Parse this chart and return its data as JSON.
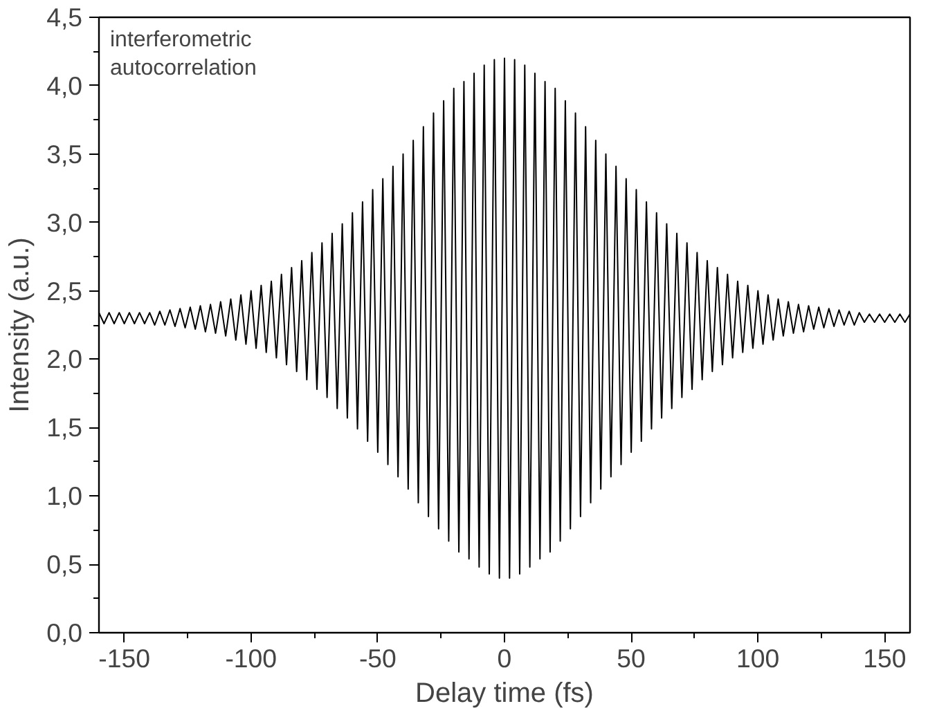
{
  "chart_data": {
    "type": "line",
    "xlabel": "Delay time (fs)",
    "ylabel": "Intensity (a.u.)",
    "annotations": [
      "interferometric\nautocorrelation"
    ],
    "xlim": [
      -160,
      160
    ],
    "ylim": [
      0,
      4.5
    ],
    "xticks": [
      -150,
      {
        "value": -125,
        "label": null
      },
      -100,
      {
        "value": -75,
        "label": null
      },
      -50,
      {
        "value": -25,
        "label": null
      },
      0,
      {
        "value": 25,
        "label": null
      },
      50,
      {
        "value": 75,
        "label": null
      },
      100,
      {
        "value": 125,
        "label": null
      },
      150
    ],
    "yticks": [
      {
        "value": 0,
        "label": "0,0"
      },
      {
        "value": 0.25,
        "label": null
      },
      {
        "value": 0.5,
        "label": "0,5"
      },
      {
        "value": 0.75,
        "label": null
      },
      {
        "value": 1.0,
        "label": "1,0"
      },
      {
        "value": 1.25,
        "label": null
      },
      {
        "value": 1.5,
        "label": "1,5"
      },
      {
        "value": 1.75,
        "label": null
      },
      {
        "value": 2.0,
        "label": "2,0"
      },
      {
        "value": 2.25,
        "label": null
      },
      {
        "value": 2.5,
        "label": "2,5"
      },
      {
        "value": 2.75,
        "label": null
      },
      {
        "value": 3.0,
        "label": "3,0"
      },
      {
        "value": 3.25,
        "label": null
      },
      {
        "value": 3.5,
        "label": "3,5"
      },
      {
        "value": 3.75,
        "label": null
      },
      {
        "value": 4.0,
        "label": "4,0"
      },
      {
        "value": 4.25,
        "label": null
      },
      {
        "value": 4.5,
        "label": "4,5"
      }
    ],
    "grid": false,
    "marker": "none",
    "line_style": "solid",
    "series": [
      {
        "color": "#000000",
        "x": [
          -160,
          -158,
          -156,
          -154,
          -152,
          -150,
          -148,
          -146,
          -144,
          -142,
          -140,
          -138,
          -136,
          -134,
          -132,
          -130,
          -128,
          -126,
          -124,
          -122,
          -120,
          -118,
          -116,
          -114,
          -112,
          -110,
          -108,
          -106,
          -104,
          -102,
          -100,
          -98,
          -96,
          -94,
          -92,
          -90,
          -88,
          -86,
          -84,
          -82,
          -80,
          -78,
          -76,
          -74,
          -72,
          -70,
          -68,
          -66,
          -64,
          -62,
          -60,
          -58,
          -56,
          -54,
          -52,
          -50,
          -48,
          -46,
          -44,
          -42,
          -40,
          -38,
          -36,
          -34,
          -32,
          -30,
          -28,
          -26,
          -24,
          -22,
          -20,
          -18,
          -16,
          -14,
          -12,
          -10,
          -8,
          -6,
          -4,
          -2,
          0,
          2,
          4,
          6,
          8,
          10,
          12,
          14,
          16,
          18,
          20,
          22,
          24,
          26,
          28,
          30,
          32,
          34,
          36,
          38,
          40,
          42,
          44,
          46,
          48,
          50,
          52,
          54,
          56,
          58,
          60,
          62,
          64,
          66,
          68,
          70,
          72,
          74,
          76,
          78,
          80,
          82,
          84,
          86,
          88,
          90,
          92,
          94,
          96,
          98,
          100,
          102,
          104,
          106,
          108,
          110,
          112,
          114,
          116,
          118,
          120,
          122,
          124,
          126,
          128,
          130,
          132,
          134,
          136,
          138,
          140,
          142,
          144,
          146,
          148,
          150,
          152,
          154,
          156,
          158,
          160
        ],
        "values": [
          2.34,
          2.26,
          2.34,
          2.26,
          2.34,
          2.26,
          2.34,
          2.26,
          2.34,
          2.26,
          2.34,
          2.25,
          2.35,
          2.25,
          2.36,
          2.24,
          2.37,
          2.23,
          2.38,
          2.22,
          2.39,
          2.2,
          2.4,
          2.19,
          2.42,
          2.17,
          2.44,
          2.14,
          2.47,
          2.11,
          2.5,
          2.08,
          2.54,
          2.05,
          2.57,
          2.01,
          2.62,
          1.96,
          2.67,
          1.91,
          2.72,
          1.85,
          2.78,
          1.78,
          2.85,
          1.72,
          2.92,
          1.64,
          2.99,
          1.57,
          3.07,
          1.49,
          3.15,
          1.4,
          3.24,
          1.32,
          3.32,
          1.23,
          3.41,
          1.14,
          3.5,
          1.05,
          3.6,
          0.95,
          3.7,
          0.85,
          3.8,
          0.76,
          3.89,
          0.67,
          3.98,
          0.59,
          4.03,
          0.54,
          4.09,
          0.48,
          4.15,
          0.43,
          4.19,
          0.4,
          4.2,
          0.4,
          4.19,
          0.43,
          4.15,
          0.48,
          4.09,
          0.54,
          4.03,
          0.59,
          3.98,
          0.67,
          3.89,
          0.76,
          3.8,
          0.85,
          3.7,
          0.95,
          3.6,
          1.05,
          3.5,
          1.14,
          3.41,
          1.23,
          3.32,
          1.32,
          3.24,
          1.4,
          3.15,
          1.49,
          3.07,
          1.57,
          2.99,
          1.64,
          2.92,
          1.72,
          2.85,
          1.78,
          2.78,
          1.85,
          2.72,
          1.91,
          2.67,
          1.96,
          2.62,
          2.01,
          2.57,
          2.05,
          2.54,
          2.08,
          2.5,
          2.11,
          2.47,
          2.14,
          2.44,
          2.17,
          2.42,
          2.19,
          2.4,
          2.2,
          2.39,
          2.22,
          2.38,
          2.23,
          2.37,
          2.24,
          2.36,
          2.25,
          2.35,
          2.25,
          2.34,
          2.27,
          2.33,
          2.27,
          2.33,
          2.27,
          2.33,
          2.27,
          2.33,
          2.27,
          2.33
        ]
      }
    ]
  }
}
